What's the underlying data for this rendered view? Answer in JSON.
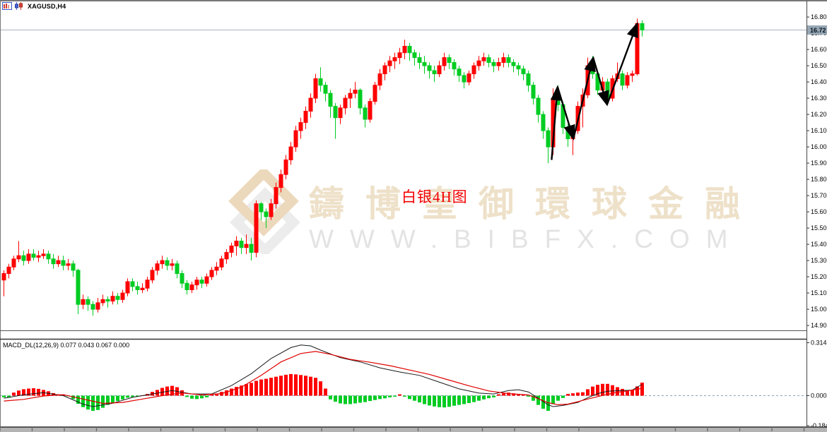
{
  "window": {
    "title": "XAGUSD,H4"
  },
  "icons": {
    "icon1": "bar-chart-window-icon",
    "icon2": "candlestick-chart-icon"
  },
  "watermark": {
    "brand": "鑄博皇御環球金融",
    "url": "WWW.BIBFX.COM",
    "logo": "bibfx-diamond-logo"
  },
  "annotation": {
    "label": "白银4H图"
  },
  "colors": {
    "up": "#ff0000",
    "down": "#00cc22",
    "trend": "#000000",
    "price_line": "#a4b3bf",
    "badge_bg": "#97a7b4",
    "zero_line": "#8ba0b5",
    "macd_line": "#1a1a1a",
    "signal_line": "#e00000",
    "watermark_beige": "#ecd9bc",
    "watermark_gray": "#ececec"
  },
  "price_axis": {
    "current_price": "16.72",
    "ticks": [
      "16.80",
      "16.70",
      "16.60",
      "16.50",
      "16.40",
      "16.30",
      "16.20",
      "16.10",
      "16.00",
      "15.90",
      "15.80",
      "15.70",
      "15.60",
      "15.50",
      "15.40",
      "15.30",
      "15.20",
      "15.10",
      "15.00",
      "14.90"
    ]
  },
  "macd": {
    "label": "MACD_DL(12,26,9) 0.077 0.043 0.067 0.000",
    "axis_ticks": [
      "0.314",
      "0.000",
      "-0.184"
    ],
    "current_values": [
      0.077,
      0.043,
      0.067,
      0.0
    ]
  },
  "chart_data": {
    "type": "candlestick",
    "symbol": "XAGUSD",
    "timeframe": "H4",
    "price_range_visible": [
      14.82,
      16.84
    ],
    "candles": [
      [
        15.18,
        15.24,
        15.08,
        15.22
      ],
      [
        15.22,
        15.28,
        15.19,
        15.26
      ],
      [
        15.26,
        15.33,
        15.24,
        15.31
      ],
      [
        15.31,
        15.42,
        15.29,
        15.33
      ],
      [
        15.33,
        15.36,
        15.27,
        15.3
      ],
      [
        15.3,
        15.37,
        15.28,
        15.34
      ],
      [
        15.34,
        15.37,
        15.3,
        15.32
      ],
      [
        15.32,
        15.36,
        15.29,
        15.33
      ],
      [
        15.33,
        15.37,
        15.31,
        15.34
      ],
      [
        15.34,
        15.36,
        15.28,
        15.31
      ],
      [
        15.31,
        15.34,
        15.25,
        15.28
      ],
      [
        15.28,
        15.33,
        15.26,
        15.3
      ],
      [
        15.3,
        15.33,
        15.24,
        15.27
      ],
      [
        15.27,
        15.31,
        15.24,
        15.28
      ],
      [
        15.28,
        15.3,
        15.2,
        15.24
      ],
      [
        15.24,
        15.25,
        14.97,
        15.03
      ],
      [
        15.03,
        15.09,
        15.0,
        15.06
      ],
      [
        15.06,
        15.08,
        14.99,
        15.03
      ],
      [
        15.03,
        15.05,
        14.96,
        15.0
      ],
      [
        15.0,
        15.07,
        14.98,
        15.04
      ],
      [
        15.04,
        15.09,
        15.02,
        15.06
      ],
      [
        15.06,
        15.08,
        15.01,
        15.05
      ],
      [
        15.05,
        15.11,
        15.03,
        15.08
      ],
      [
        15.08,
        15.1,
        15.03,
        15.06
      ],
      [
        15.06,
        15.12,
        15.04,
        15.1
      ],
      [
        15.1,
        15.19,
        15.08,
        15.17
      ],
      [
        15.17,
        15.19,
        15.11,
        15.14
      ],
      [
        15.14,
        15.17,
        15.09,
        15.12
      ],
      [
        15.12,
        15.16,
        15.1,
        15.13
      ],
      [
        15.13,
        15.2,
        15.11,
        15.18
      ],
      [
        15.18,
        15.26,
        15.16,
        15.24
      ],
      [
        15.24,
        15.3,
        15.21,
        15.28
      ],
      [
        15.28,
        15.33,
        15.25,
        15.3
      ],
      [
        15.3,
        15.32,
        15.24,
        15.27
      ],
      [
        15.27,
        15.31,
        15.24,
        15.28
      ],
      [
        15.28,
        15.3,
        15.19,
        15.22
      ],
      [
        15.22,
        15.24,
        15.13,
        15.16
      ],
      [
        15.16,
        15.18,
        15.09,
        15.12
      ],
      [
        15.12,
        15.17,
        15.1,
        15.15
      ],
      [
        15.15,
        15.2,
        15.12,
        15.18
      ],
      [
        15.18,
        15.2,
        15.13,
        15.16
      ],
      [
        15.16,
        15.22,
        15.14,
        15.2
      ],
      [
        15.2,
        15.26,
        15.18,
        15.24
      ],
      [
        15.24,
        15.29,
        15.21,
        15.26
      ],
      [
        15.26,
        15.33,
        15.24,
        15.31
      ],
      [
        15.31,
        15.37,
        15.28,
        15.35
      ],
      [
        15.35,
        15.41,
        15.32,
        15.39
      ],
      [
        15.39,
        15.45,
        15.33,
        15.42
      ],
      [
        15.42,
        15.44,
        15.34,
        15.38
      ],
      [
        15.38,
        15.46,
        15.34,
        15.4
      ],
      [
        15.4,
        15.44,
        15.3,
        15.35
      ],
      [
        15.35,
        15.67,
        15.32,
        15.65
      ],
      [
        15.65,
        15.66,
        15.55,
        15.6
      ],
      [
        15.6,
        15.62,
        15.5,
        15.57
      ],
      [
        15.57,
        15.68,
        15.55,
        15.65
      ],
      [
        15.65,
        15.78,
        15.62,
        15.75
      ],
      [
        15.75,
        15.86,
        15.72,
        15.83
      ],
      [
        15.83,
        15.95,
        15.8,
        15.92
      ],
      [
        15.92,
        16.03,
        15.89,
        16.0
      ],
      [
        16.0,
        16.13,
        15.97,
        16.1
      ],
      [
        16.1,
        16.18,
        16.05,
        16.15
      ],
      [
        16.15,
        16.25,
        16.11,
        16.22
      ],
      [
        16.22,
        16.33,
        16.18,
        16.3
      ],
      [
        16.3,
        16.45,
        16.27,
        16.42
      ],
      [
        16.42,
        16.49,
        16.34,
        16.38
      ],
      [
        16.38,
        16.4,
        16.28,
        16.33
      ],
      [
        16.33,
        16.35,
        16.18,
        16.25
      ],
      [
        16.25,
        16.27,
        16.05,
        16.18
      ],
      [
        16.18,
        16.26,
        16.14,
        16.24
      ],
      [
        16.24,
        16.32,
        16.2,
        16.3
      ],
      [
        16.3,
        16.36,
        16.24,
        16.33
      ],
      [
        16.33,
        16.4,
        16.3,
        16.35
      ],
      [
        16.35,
        16.36,
        16.2,
        16.24
      ],
      [
        16.24,
        16.26,
        16.12,
        16.17
      ],
      [
        16.17,
        16.3,
        16.15,
        16.28
      ],
      [
        16.28,
        16.4,
        16.26,
        16.38
      ],
      [
        16.38,
        16.48,
        16.35,
        16.45
      ],
      [
        16.45,
        16.52,
        16.41,
        16.5
      ],
      [
        16.5,
        16.56,
        16.46,
        16.53
      ],
      [
        16.53,
        16.58,
        16.48,
        16.55
      ],
      [
        16.55,
        16.61,
        16.51,
        16.58
      ],
      [
        16.58,
        16.66,
        16.54,
        16.62
      ],
      [
        16.62,
        16.64,
        16.53,
        16.58
      ],
      [
        16.58,
        16.6,
        16.5,
        16.55
      ],
      [
        16.55,
        16.58,
        16.48,
        16.52
      ],
      [
        16.52,
        16.56,
        16.45,
        16.5
      ],
      [
        16.5,
        16.52,
        16.42,
        16.47
      ],
      [
        16.47,
        16.5,
        16.4,
        16.45
      ],
      [
        16.45,
        16.53,
        16.43,
        16.5
      ],
      [
        16.5,
        16.58,
        16.47,
        16.55
      ],
      [
        16.55,
        16.57,
        16.48,
        16.52
      ],
      [
        16.52,
        16.54,
        16.44,
        16.48
      ],
      [
        16.48,
        16.5,
        16.4,
        16.44
      ],
      [
        16.44,
        16.46,
        16.36,
        16.4
      ],
      [
        16.4,
        16.47,
        16.38,
        16.45
      ],
      [
        16.45,
        16.52,
        16.42,
        16.5
      ],
      [
        16.5,
        16.56,
        16.47,
        16.53
      ],
      [
        16.53,
        16.58,
        16.5,
        16.55
      ],
      [
        16.55,
        16.57,
        16.49,
        16.52
      ],
      [
        16.52,
        16.54,
        16.46,
        16.5
      ],
      [
        16.5,
        16.55,
        16.47,
        16.52
      ],
      [
        16.52,
        16.58,
        16.49,
        16.55
      ],
      [
        16.55,
        16.57,
        16.49,
        16.52
      ],
      [
        16.52,
        16.54,
        16.46,
        16.5
      ],
      [
        16.5,
        16.52,
        16.44,
        16.48
      ],
      [
        16.48,
        16.5,
        16.41,
        16.45
      ],
      [
        16.45,
        16.47,
        16.34,
        16.38
      ],
      [
        16.38,
        16.4,
        16.26,
        16.3
      ],
      [
        16.3,
        16.32,
        16.15,
        16.2
      ],
      [
        16.2,
        16.22,
        16.05,
        16.1
      ],
      [
        16.1,
        16.12,
        15.9,
        16.0
      ],
      [
        16.0,
        16.36,
        15.95,
        16.3
      ],
      [
        16.3,
        16.38,
        16.22,
        16.26
      ],
      [
        16.26,
        16.28,
        16.08,
        16.12
      ],
      [
        16.12,
        16.14,
        16.0,
        16.05
      ],
      [
        16.05,
        16.12,
        15.95,
        16.1
      ],
      [
        16.1,
        16.28,
        16.08,
        16.25
      ],
      [
        16.25,
        16.36,
        16.12,
        16.32
      ],
      [
        16.32,
        16.55,
        16.3,
        16.5
      ],
      [
        16.5,
        16.56,
        16.42,
        16.45
      ],
      [
        16.45,
        16.47,
        16.32,
        16.35
      ],
      [
        16.35,
        16.43,
        16.33,
        16.4
      ],
      [
        16.4,
        16.42,
        16.26,
        16.3
      ],
      [
        16.3,
        16.44,
        16.28,
        16.42
      ],
      [
        16.42,
        16.52,
        16.4,
        16.45
      ],
      [
        16.45,
        16.47,
        16.35,
        16.38
      ],
      [
        16.38,
        16.46,
        16.36,
        16.44
      ],
      [
        16.44,
        16.47,
        16.4,
        16.45
      ],
      [
        16.45,
        16.79,
        16.44,
        16.76
      ],
      [
        16.76,
        16.78,
        16.68,
        16.72
      ]
    ],
    "trend_zigzag_points": [
      [
        110.7,
        15.92
      ],
      [
        111.9,
        16.37
      ],
      [
        115.1,
        16.05
      ],
      [
        119.1,
        16.55
      ],
      [
        121.9,
        16.26
      ],
      [
        128.0,
        16.76
      ]
    ],
    "macd_histogram": [
      -0.01,
      -0.012,
      0.018,
      0.03,
      0.038,
      0.042,
      0.044,
      0.04,
      0.034,
      0.026,
      0.015,
      0.008,
      0.004,
      -0.002,
      -0.02,
      -0.048,
      -0.068,
      -0.082,
      -0.09,
      -0.085,
      -0.072,
      -0.055,
      -0.042,
      -0.032,
      -0.022,
      -0.012,
      -0.008,
      -0.004,
      0.002,
      0.01,
      0.022,
      0.034,
      0.046,
      0.054,
      0.058,
      0.05,
      0.032,
      -0.008,
      -0.018,
      -0.02,
      -0.016,
      -0.01,
      0.006,
      0.012,
      0.022,
      0.032,
      0.042,
      0.052,
      0.06,
      0.068,
      0.076,
      0.088,
      0.096,
      0.1,
      0.106,
      0.112,
      0.118,
      0.124,
      0.128,
      0.126,
      0.122,
      0.118,
      0.112,
      0.106,
      0.085,
      0.042,
      -0.022,
      -0.036,
      -0.046,
      -0.05,
      -0.05,
      -0.046,
      -0.042,
      -0.038,
      -0.032,
      -0.026,
      -0.02,
      -0.016,
      -0.01,
      -0.006,
      0.008,
      -0.006,
      -0.02,
      -0.03,
      -0.04,
      -0.05,
      -0.058,
      -0.064,
      -0.068,
      -0.07,
      -0.066,
      -0.06,
      -0.055,
      -0.05,
      -0.044,
      -0.038,
      -0.03,
      -0.022,
      -0.015,
      -0.01,
      0.008,
      0.014,
      0.018,
      0.014,
      0.01,
      0.005,
      -0.006,
      -0.03,
      -0.055,
      -0.078,
      -0.09,
      -0.05,
      -0.03,
      -0.014,
      0.01,
      0.014,
      0.018,
      0.02,
      0.038,
      0.054,
      0.064,
      0.07,
      0.07,
      0.062,
      0.05,
      0.04,
      0.03,
      0.034,
      0.055,
      0.077
    ],
    "macd_line": [
      [
        0,
        -0.015
      ],
      [
        4,
        0.005
      ],
      [
        8,
        0.018
      ],
      [
        12,
        0.0
      ],
      [
        16,
        -0.05
      ],
      [
        18,
        -0.065
      ],
      [
        22,
        -0.045
      ],
      [
        26,
        -0.01
      ],
      [
        30,
        0.01
      ],
      [
        34,
        0.03
      ],
      [
        38,
        0.01
      ],
      [
        42,
        0.01
      ],
      [
        46,
        0.06
      ],
      [
        50,
        0.13
      ],
      [
        54,
        0.22
      ],
      [
        58,
        0.285
      ],
      [
        60,
        0.3
      ],
      [
        62,
        0.295
      ],
      [
        64,
        0.27
      ],
      [
        68,
        0.225
      ],
      [
        72,
        0.2
      ],
      [
        76,
        0.165
      ],
      [
        80,
        0.14
      ],
      [
        84,
        0.12
      ],
      [
        88,
        0.08
      ],
      [
        92,
        0.04
      ],
      [
        96,
        0.015
      ],
      [
        99,
        0.01
      ],
      [
        102,
        0.03
      ],
      [
        104,
        0.035
      ],
      [
        106,
        0.022
      ],
      [
        108,
        -0.015
      ],
      [
        110,
        -0.055
      ],
      [
        111,
        -0.065
      ],
      [
        113,
        -0.058
      ],
      [
        116,
        -0.04
      ],
      [
        118,
        -0.012
      ],
      [
        120,
        0.012
      ],
      [
        122,
        0.026
      ],
      [
        125,
        0.03
      ],
      [
        127,
        0.033
      ],
      [
        128,
        0.05
      ],
      [
        129,
        0.067
      ]
    ],
    "signal_line": [
      [
        0,
        -0.032
      ],
      [
        4,
        -0.022
      ],
      [
        8,
        -0.002
      ],
      [
        12,
        0.006
      ],
      [
        16,
        -0.02
      ],
      [
        20,
        -0.046
      ],
      [
        24,
        -0.04
      ],
      [
        28,
        -0.02
      ],
      [
        32,
        0.0
      ],
      [
        36,
        0.016
      ],
      [
        40,
        0.004
      ],
      [
        44,
        0.012
      ],
      [
        48,
        0.05
      ],
      [
        52,
        0.12
      ],
      [
        56,
        0.2
      ],
      [
        60,
        0.25
      ],
      [
        63,
        0.262
      ],
      [
        66,
        0.245
      ],
      [
        70,
        0.215
      ],
      [
        74,
        0.198
      ],
      [
        78,
        0.178
      ],
      [
        82,
        0.152
      ],
      [
        86,
        0.126
      ],
      [
        90,
        0.092
      ],
      [
        94,
        0.058
      ],
      [
        98,
        0.028
      ],
      [
        102,
        0.012
      ],
      [
        106,
        0.004
      ],
      [
        108,
        -0.018
      ],
      [
        110,
        -0.042
      ],
      [
        112,
        -0.054
      ],
      [
        114,
        -0.05
      ],
      [
        116,
        -0.036
      ],
      [
        118,
        -0.02
      ],
      [
        120,
        -0.006
      ],
      [
        122,
        0.008
      ],
      [
        124,
        0.02
      ],
      [
        126,
        0.028
      ],
      [
        128,
        0.038
      ],
      [
        129,
        0.043
      ]
    ]
  }
}
